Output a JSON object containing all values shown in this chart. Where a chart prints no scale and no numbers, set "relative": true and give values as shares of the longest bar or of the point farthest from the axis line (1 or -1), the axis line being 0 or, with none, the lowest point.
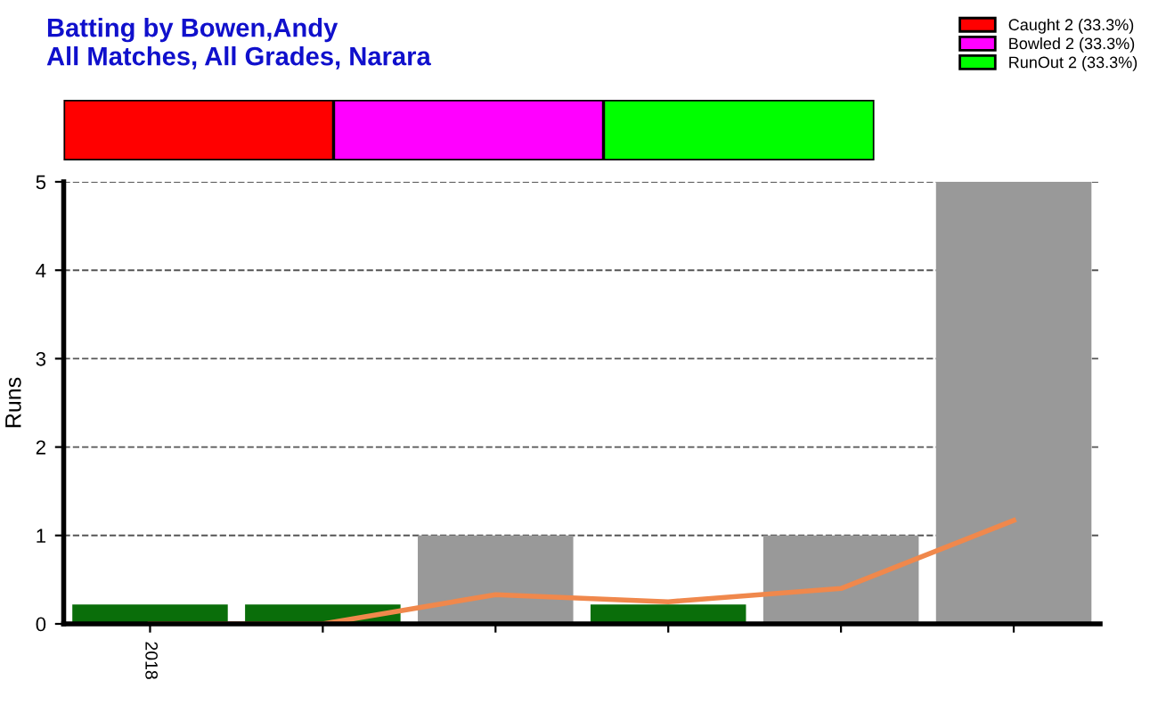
{
  "chart_data": [
    {
      "type": "bar",
      "orientation": "horizontal",
      "stacked": true,
      "relative": true,
      "title": "Batting by Bowen,Andy",
      "subtitle": "All Matches, All Grades, Narara",
      "categories": [
        null
      ],
      "legend": "top right",
      "series": [
        {
          "name": "Caught 2 (33.3%)",
          "color": "#ff0000",
          "values": [
            0.333
          ]
        },
        {
          "name": "Bowled 2 (33.3%)",
          "color": "#ff00ff",
          "values": [
            0.333
          ]
        },
        {
          "name": "RunOut 2 (33.3%)",
          "color": "#00ff00",
          "values": [
            0.334
          ]
        }
      ]
    },
    {
      "type": "bar",
      "ylabel": "Runs",
      "categories": [
        "2018",
        null,
        null,
        null,
        null,
        null
      ],
      "ylim": [
        0,
        5
      ],
      "yticks": [
        0,
        1,
        2,
        3,
        4,
        5
      ],
      "grid": "y",
      "series": [
        {
          "type": "bar",
          "colors": [
            "#0a6e0a",
            "#0a6e0a",
            "#999999",
            "#0a6e0a",
            "#999999",
            "#999999"
          ],
          "values": [
            0.22,
            0.22,
            1,
            0.22,
            1,
            5
          ]
        },
        {
          "type": "line",
          "color": "#f0884c",
          "values": [
            0,
            0,
            0.33,
            0.25,
            0.4,
            1.17
          ]
        }
      ]
    }
  ]
}
